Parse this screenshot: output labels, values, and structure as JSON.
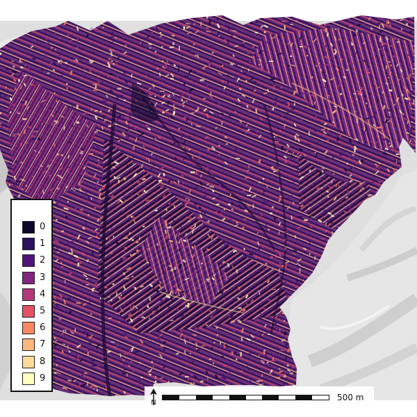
{
  "map": {
    "raster_palette": [
      "#0d0829",
      "#2c1160",
      "#51127c",
      "#812581",
      "#b5367a",
      "#e55064",
      "#fb8761",
      "#fdb67c",
      "#fdda9c",
      "#fcfdbf"
    ],
    "hillshade_colors": {
      "light": "#f0f0f0",
      "mid": "#d7d7d7",
      "dark": "#b8b8b8"
    }
  },
  "legend": {
    "items": [
      {
        "label": "0",
        "color": "#0d0829"
      },
      {
        "label": "1",
        "color": "#2c1160"
      },
      {
        "label": "2",
        "color": "#51127c"
      },
      {
        "label": "3",
        "color": "#812581"
      },
      {
        "label": "4",
        "color": "#b5367a"
      },
      {
        "label": "5",
        "color": "#e55064"
      },
      {
        "label": "6",
        "color": "#fb8761"
      },
      {
        "label": "7",
        "color": "#fdb67c"
      },
      {
        "label": "8",
        "color": "#fdda9c"
      },
      {
        "label": "9",
        "color": "#fcfdbf"
      }
    ]
  },
  "north_arrow": {
    "label": "N",
    "icon": "north-arrow-icon"
  },
  "scale_bar": {
    "label": "500 m",
    "segments": 10
  }
}
